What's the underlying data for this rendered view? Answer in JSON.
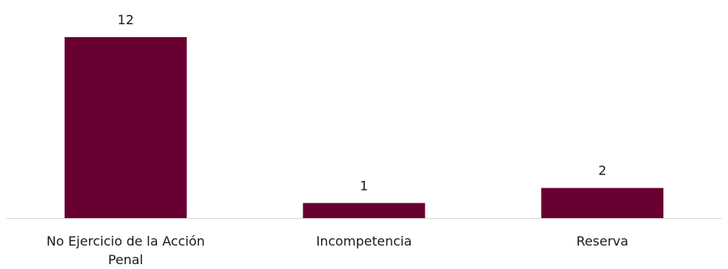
{
  "chart_data": {
    "type": "bar",
    "title": "",
    "xlabel": "",
    "ylabel": "",
    "categories": [
      "No Ejercicio de la Acción Penal",
      "Incompetencia",
      "Reserva"
    ],
    "category_lines": [
      [
        "No Ejercicio de la Acción",
        "Penal"
      ],
      [
        "Incompetencia"
      ],
      [
        "Reserva"
      ]
    ],
    "values": [
      12,
      1,
      2
    ],
    "ylim": [
      0,
      12
    ],
    "grid": false,
    "legend": "none",
    "colors": {
      "bar": "#680032",
      "axis": "#d9d9d9",
      "text": "#1a1a1a"
    }
  }
}
